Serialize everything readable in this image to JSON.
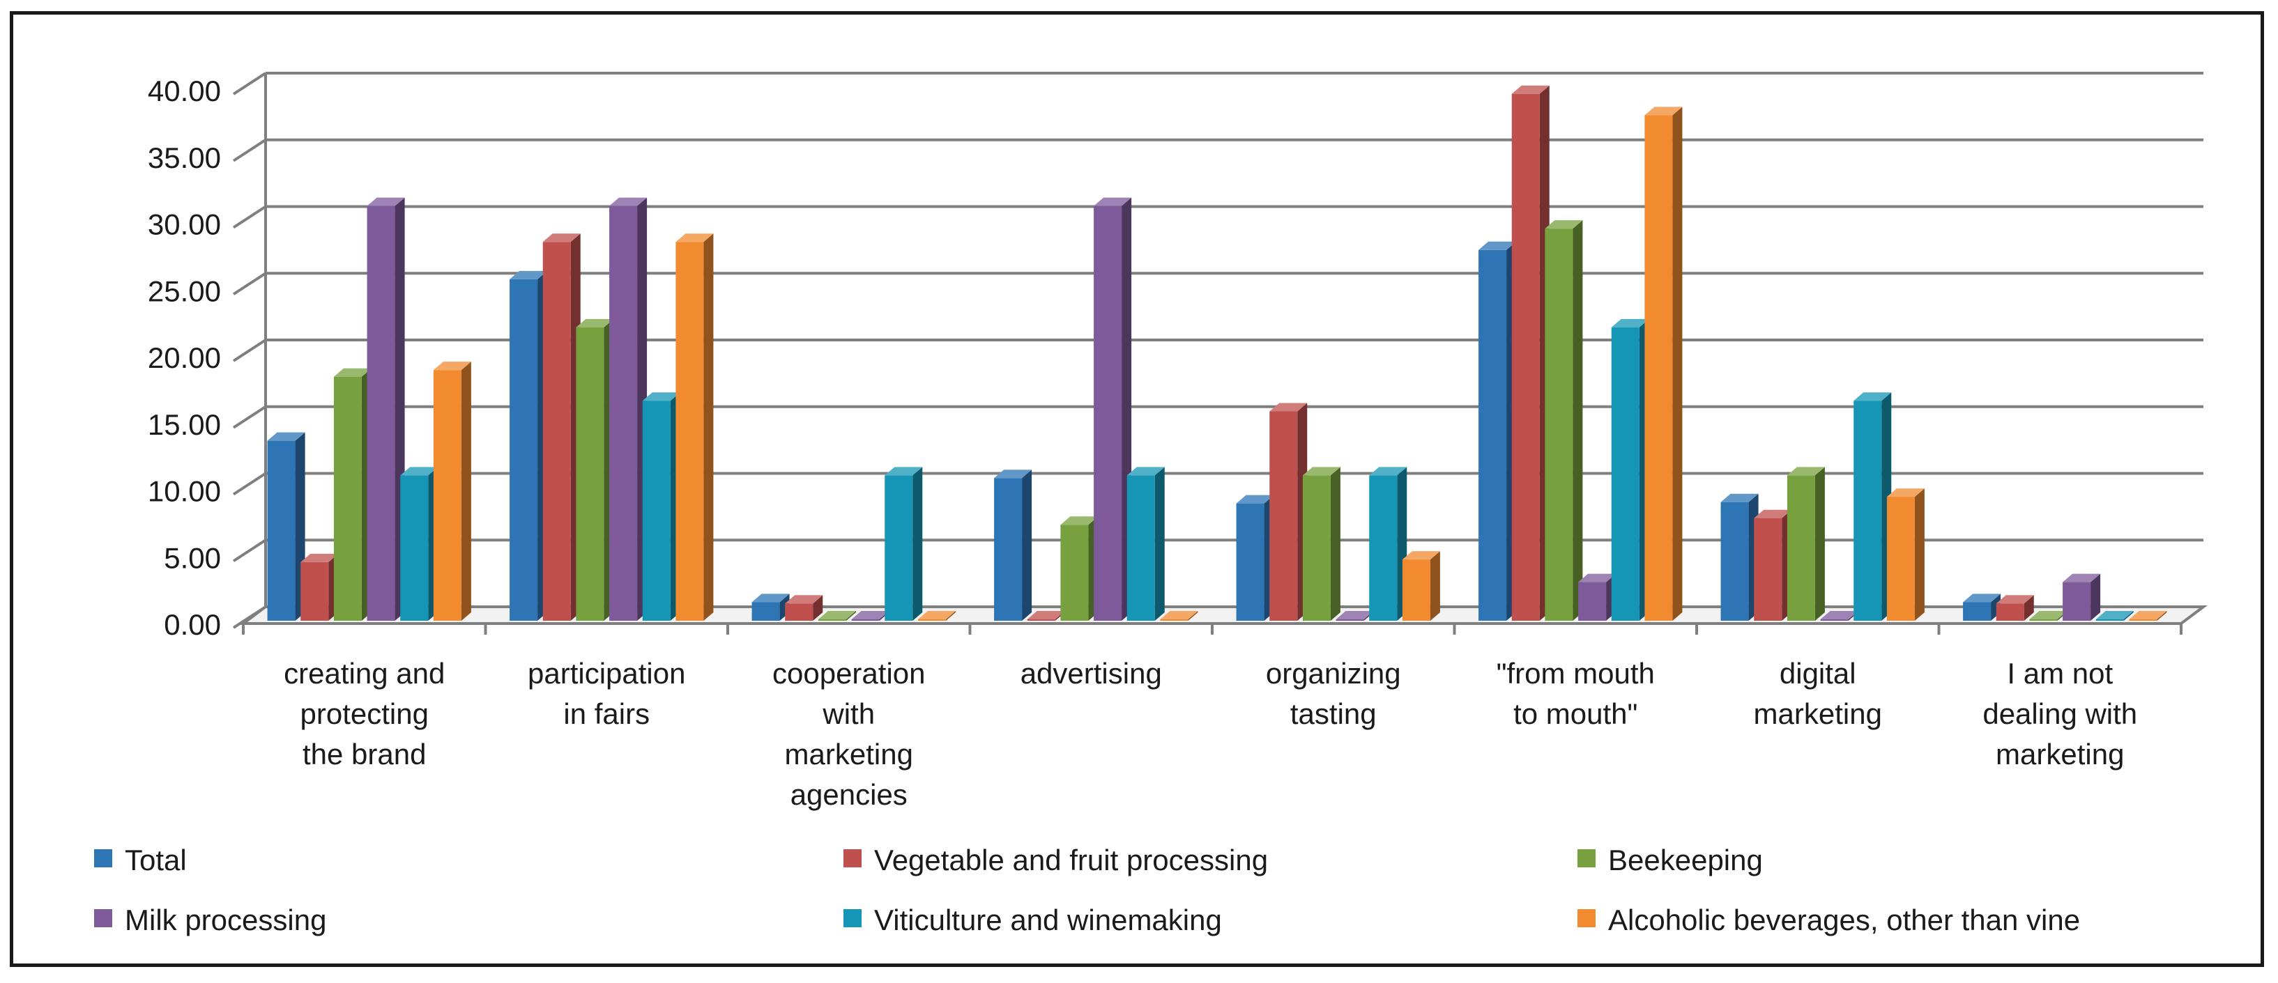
{
  "chart_data": {
    "type": "bar",
    "title": "",
    "xlabel": "",
    "ylabel": "",
    "ylim": [
      0,
      40
    ],
    "y_ticks": [
      "0.00",
      "5.00",
      "10.00",
      "15.00",
      "20.00",
      "25.00",
      "30.00",
      "35.00",
      "40.00"
    ],
    "grid": true,
    "legend_position": "bottom",
    "categories": [
      [
        "creating and",
        "protecting",
        "the brand"
      ],
      [
        "participation",
        "in fairs"
      ],
      [
        "cooperation",
        "with",
        "marketing",
        "agencies"
      ],
      [
        "advertising"
      ],
      [
        "organizing",
        "tasting"
      ],
      [
        "\"from mouth",
        "to mouth\""
      ],
      [
        "digital",
        "marketing"
      ],
      [
        "I am not",
        "dealing with",
        "marketing"
      ]
    ],
    "series": [
      {
        "name": "Total",
        "color": "#2E75B6",
        "values": [
          13.7,
          25.8,
          1.6,
          10.9,
          9.0,
          28.0,
          9.1,
          1.6
        ]
      },
      {
        "name": "Vegetable and fruit processing",
        "color": "#C0504D",
        "values": [
          4.6,
          28.6,
          1.5,
          0.0,
          15.9,
          39.7,
          7.9,
          1.5
        ]
      },
      {
        "name": "Beekeeping",
        "color": "#77A13E",
        "values": [
          18.5,
          22.2,
          0.0,
          7.4,
          11.1,
          29.6,
          11.1,
          0.0
        ]
      },
      {
        "name": "Milk processing",
        "color": "#7E5A9B",
        "values": [
          31.3,
          31.3,
          0.0,
          31.3,
          0.0,
          3.1,
          0.0,
          3.1
        ]
      },
      {
        "name": "Viticulture and winemaking",
        "color": "#1596B6",
        "values": [
          11.1,
          16.7,
          11.1,
          11.1,
          11.1,
          22.2,
          16.7,
          0.0
        ]
      },
      {
        "name": "Alcoholic beverages, other than vine",
        "color": "#F28A30",
        "values": [
          19.0,
          28.6,
          0.0,
          0.0,
          4.8,
          38.1,
          9.5,
          0.0
        ]
      }
    ]
  }
}
